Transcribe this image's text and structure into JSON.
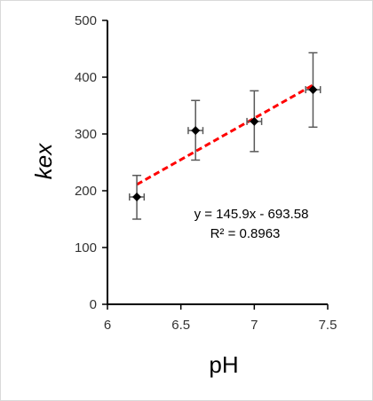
{
  "chart_data": {
    "type": "scatter",
    "xlabel": "pH",
    "ylabel": "kex",
    "xlim": [
      6,
      7.5
    ],
    "ylim": [
      0,
      500
    ],
    "xticks": [
      "6",
      "6.5",
      "7",
      "7.5"
    ],
    "yticks": [
      "0",
      "100",
      "200",
      "300",
      "400",
      "500"
    ],
    "grid": false,
    "points": [
      {
        "x": 6.2,
        "y": 189,
        "yerr_low": 150,
        "yerr_high": 227,
        "xerr": 0.05
      },
      {
        "x": 6.6,
        "y": 306,
        "yerr_low": 254,
        "yerr_high": 359,
        "xerr": 0.05
      },
      {
        "x": 7.0,
        "y": 322,
        "yerr_low": 269,
        "yerr_high": 376,
        "xerr": 0.05
      },
      {
        "x": 7.4,
        "y": 378,
        "yerr_low": 312,
        "yerr_high": 443,
        "xerr": 0.05
      }
    ],
    "trendline": {
      "slope": 145.9,
      "intercept": -693.58,
      "x_range": [
        6.2,
        7.4
      ],
      "color": "#ff0000",
      "style": "dashed",
      "equation_label": "y = 145.9x - 693.58",
      "r2_label": "R² = 0.8963"
    },
    "marker_color": "#000000",
    "errorbar_color": "#595959"
  }
}
